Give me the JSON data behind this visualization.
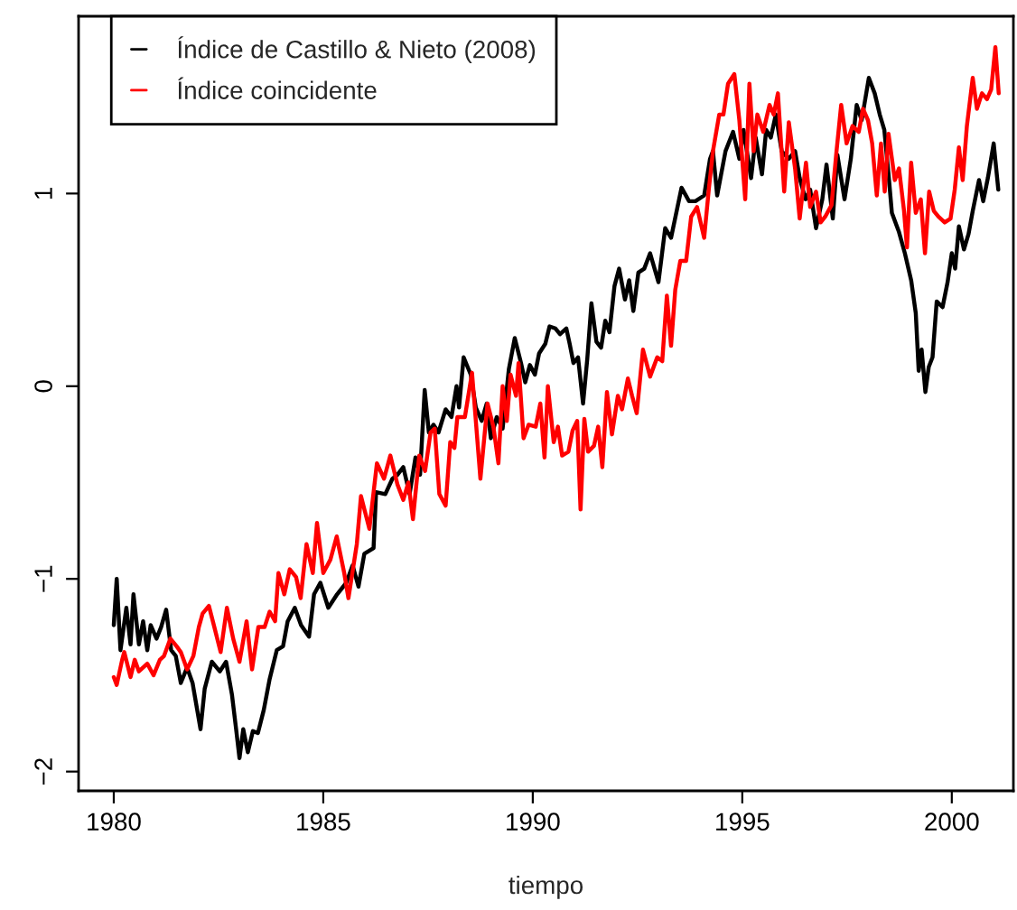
{
  "chart_data": {
    "type": "line",
    "xlabel": "tiempo",
    "xlim": [
      1979.16,
      2001.47
    ],
    "ylim": [
      -2.1,
      1.92
    ],
    "xticks": [
      1980,
      1985,
      1990,
      1995,
      2000
    ],
    "yticks": [
      -2,
      -1,
      0,
      1
    ],
    "grid": false,
    "legend": "top left",
    "marker": "none",
    "line_style": "solid",
    "series": [
      {
        "name": "Índice de Castillo & Nieto (2008)",
        "color": "#000000",
        "x": [
          1980.0,
          1980.07,
          1980.16,
          1980.3,
          1980.4,
          1980.47,
          1980.6,
          1980.7,
          1980.8,
          1980.88,
          1981.02,
          1981.13,
          1981.25,
          1981.37,
          1981.48,
          1981.6,
          1981.75,
          1981.88,
          1982.07,
          1982.17,
          1982.34,
          1982.53,
          1982.68,
          1982.82,
          1982.92,
          1983.0,
          1983.09,
          1983.2,
          1983.32,
          1983.44,
          1983.58,
          1983.72,
          1983.89,
          1984.04,
          1984.15,
          1984.32,
          1984.47,
          1984.66,
          1984.78,
          1984.93,
          1985.12,
          1985.33,
          1985.55,
          1985.7,
          1985.84,
          1985.98,
          1986.2,
          1986.26,
          1986.48,
          1986.65,
          1986.77,
          1986.91,
          1987.06,
          1987.2,
          1987.31,
          1987.42,
          1987.52,
          1987.63,
          1987.75,
          1987.92,
          1988.06,
          1988.18,
          1988.24,
          1988.35,
          1988.52,
          1988.64,
          1988.78,
          1988.9,
          1989.0,
          1989.14,
          1989.28,
          1989.43,
          1989.57,
          1989.72,
          1989.82,
          1989.93,
          1990.05,
          1990.15,
          1990.3,
          1990.4,
          1990.54,
          1990.65,
          1990.8,
          1990.88,
          1990.97,
          1991.08,
          1991.2,
          1991.3,
          1991.4,
          1991.52,
          1991.63,
          1991.73,
          1991.83,
          1991.95,
          1992.06,
          1992.2,
          1992.3,
          1992.4,
          1992.52,
          1992.66,
          1992.8,
          1993.0,
          1993.16,
          1993.3,
          1993.55,
          1993.73,
          1993.88,
          1994.09,
          1994.23,
          1994.3,
          1994.4,
          1994.6,
          1994.78,
          1994.93,
          1995.03,
          1995.21,
          1995.32,
          1995.47,
          1995.57,
          1995.68,
          1995.8,
          1995.94,
          1996.11,
          1996.26,
          1996.37,
          1996.51,
          1996.62,
          1996.76,
          1996.91,
          1997.01,
          1997.16,
          1997.27,
          1997.44,
          1997.59,
          1997.73,
          1997.85,
          1998.02,
          1998.16,
          1998.28,
          1998.39,
          1998.49,
          1998.57,
          1998.74,
          1998.88,
          1999.03,
          1999.14,
          1999.21,
          1999.28,
          1999.37,
          1999.45,
          1999.54,
          1999.64,
          1999.78,
          1999.9,
          2000.0,
          2000.08,
          2000.17,
          2000.29,
          2000.4,
          2000.5,
          2000.65,
          2000.75,
          2000.86,
          2001.0,
          2001.11
        ],
        "values": [
          -1.24,
          -1.0,
          -1.37,
          -1.15,
          -1.34,
          -1.08,
          -1.34,
          -1.22,
          -1.37,
          -1.24,
          -1.31,
          -1.25,
          -1.16,
          -1.37,
          -1.4,
          -1.54,
          -1.46,
          -1.54,
          -1.78,
          -1.57,
          -1.43,
          -1.48,
          -1.43,
          -1.6,
          -1.78,
          -1.93,
          -1.78,
          -1.9,
          -1.79,
          -1.8,
          -1.68,
          -1.52,
          -1.37,
          -1.35,
          -1.22,
          -1.15,
          -1.24,
          -1.3,
          -1.08,
          -1.02,
          -1.15,
          -1.08,
          -1.02,
          -0.93,
          -1.04,
          -0.87,
          -0.84,
          -0.55,
          -0.56,
          -0.48,
          -0.46,
          -0.42,
          -0.56,
          -0.37,
          -0.46,
          -0.02,
          -0.24,
          -0.2,
          -0.24,
          -0.12,
          -0.16,
          0.0,
          -0.11,
          0.15,
          0.06,
          -0.11,
          -0.18,
          -0.09,
          -0.27,
          -0.16,
          -0.22,
          0.09,
          0.25,
          0.12,
          0.02,
          0.11,
          0.06,
          0.17,
          0.22,
          0.31,
          0.3,
          0.27,
          0.3,
          0.22,
          0.12,
          0.15,
          -0.09,
          0.14,
          0.43,
          0.23,
          0.2,
          0.34,
          0.28,
          0.52,
          0.61,
          0.45,
          0.55,
          0.39,
          0.59,
          0.61,
          0.69,
          0.54,
          0.82,
          0.77,
          1.03,
          0.96,
          0.96,
          0.99,
          1.18,
          1.22,
          0.99,
          1.22,
          1.32,
          1.18,
          1.33,
          1.08,
          1.29,
          1.1,
          1.33,
          1.29,
          1.41,
          1.22,
          1.18,
          1.22,
          1.08,
          0.97,
          1.02,
          0.82,
          0.97,
          1.15,
          0.87,
          1.2,
          0.97,
          1.18,
          1.46,
          1.38,
          1.6,
          1.52,
          1.41,
          1.33,
          1.1,
          0.9,
          0.8,
          0.69,
          0.55,
          0.38,
          0.08,
          0.19,
          -0.03,
          0.1,
          0.15,
          0.44,
          0.41,
          0.54,
          0.69,
          0.61,
          0.83,
          0.71,
          0.79,
          0.91,
          1.07,
          0.96,
          1.08,
          1.26,
          1.02
        ]
      },
      {
        "name": "Índice coincidente",
        "color": "#ff0000",
        "x": [
          1980.0,
          1980.07,
          1980.2,
          1980.25,
          1980.4,
          1980.5,
          1980.6,
          1980.8,
          1980.95,
          1981.1,
          1981.2,
          1981.35,
          1981.5,
          1981.6,
          1981.75,
          1981.9,
          1982.03,
          1982.12,
          1982.27,
          1982.4,
          1982.55,
          1982.7,
          1982.85,
          1983.0,
          1983.17,
          1983.3,
          1983.45,
          1983.6,
          1983.72,
          1983.85,
          1983.93,
          1984.07,
          1984.2,
          1984.35,
          1984.46,
          1984.6,
          1984.75,
          1984.85,
          1985.0,
          1985.17,
          1985.32,
          1985.5,
          1985.6,
          1985.8,
          1985.9,
          1986.1,
          1986.28,
          1986.45,
          1986.6,
          1986.77,
          1986.91,
          1987.03,
          1987.14,
          1987.29,
          1987.43,
          1987.56,
          1987.66,
          1987.77,
          1987.92,
          1988.03,
          1988.13,
          1988.2,
          1988.38,
          1988.55,
          1988.75,
          1988.92,
          1989.06,
          1989.18,
          1989.28,
          1989.38,
          1989.47,
          1989.6,
          1989.66,
          1989.78,
          1989.9,
          1990.07,
          1990.18,
          1990.28,
          1990.36,
          1990.5,
          1990.6,
          1990.7,
          1990.85,
          1990.95,
          1991.06,
          1991.14,
          1991.23,
          1991.32,
          1991.46,
          1991.56,
          1991.66,
          1991.77,
          1991.89,
          1992.03,
          1992.13,
          1992.27,
          1992.37,
          1992.48,
          1992.63,
          1992.8,
          1992.97,
          1993.09,
          1993.2,
          1993.3,
          1993.4,
          1993.52,
          1993.66,
          1993.78,
          1993.92,
          1994.09,
          1994.2,
          1994.3,
          1994.45,
          1994.55,
          1994.66,
          1994.81,
          1994.93,
          1995.07,
          1995.17,
          1995.27,
          1995.36,
          1995.5,
          1995.65,
          1995.75,
          1995.85,
          1996.0,
          1996.11,
          1996.26,
          1996.37,
          1996.52,
          1996.62,
          1996.76,
          1996.87,
          1996.98,
          1997.13,
          1997.24,
          1997.36,
          1997.49,
          1997.63,
          1997.78,
          1997.88,
          1998.0,
          1998.1,
          1998.21,
          1998.31,
          1998.4,
          1998.49,
          1998.64,
          1998.74,
          1998.86,
          1998.93,
          1999.03,
          1999.14,
          1999.26,
          1999.36,
          1999.46,
          1999.57,
          1999.68,
          1999.83,
          1999.97,
          2000.07,
          2000.17,
          2000.26,
          2000.36,
          2000.5,
          2000.6,
          2000.72,
          2000.84,
          2000.94,
          2001.04,
          2001.12
        ],
        "values": [
          -1.51,
          -1.55,
          -1.42,
          -1.38,
          -1.51,
          -1.42,
          -1.48,
          -1.44,
          -1.5,
          -1.42,
          -1.4,
          -1.31,
          -1.35,
          -1.38,
          -1.47,
          -1.4,
          -1.25,
          -1.18,
          -1.14,
          -1.25,
          -1.38,
          -1.15,
          -1.31,
          -1.43,
          -1.22,
          -1.47,
          -1.25,
          -1.25,
          -1.17,
          -1.22,
          -0.97,
          -1.08,
          -0.95,
          -0.99,
          -1.1,
          -0.82,
          -0.97,
          -0.71,
          -0.97,
          -0.9,
          -0.78,
          -0.97,
          -1.1,
          -0.82,
          -0.57,
          -0.74,
          -0.4,
          -0.48,
          -0.36,
          -0.51,
          -0.59,
          -0.5,
          -0.69,
          -0.36,
          -0.44,
          -0.24,
          -0.22,
          -0.56,
          -0.62,
          -0.29,
          -0.32,
          -0.16,
          -0.16,
          0.07,
          -0.48,
          -0.09,
          -0.21,
          -0.4,
          0.0,
          -0.18,
          0.06,
          -0.05,
          0.12,
          -0.27,
          -0.2,
          -0.21,
          -0.09,
          -0.37,
          0.0,
          -0.29,
          -0.21,
          -0.36,
          -0.34,
          -0.23,
          -0.18,
          -0.64,
          -0.17,
          -0.34,
          -0.31,
          -0.21,
          -0.42,
          -0.03,
          -0.25,
          -0.05,
          -0.12,
          0.04,
          -0.05,
          -0.14,
          0.19,
          0.05,
          0.15,
          0.13,
          0.47,
          0.21,
          0.5,
          0.65,
          0.65,
          0.88,
          0.93,
          0.77,
          1.02,
          1.22,
          1.41,
          1.41,
          1.57,
          1.62,
          1.38,
          0.97,
          1.57,
          1.22,
          1.41,
          1.32,
          1.46,
          1.41,
          1.52,
          1.01,
          1.37,
          1.13,
          0.87,
          1.16,
          0.93,
          1.01,
          0.85,
          0.88,
          0.94,
          1.2,
          1.46,
          1.26,
          1.35,
          1.32,
          1.44,
          1.38,
          1.26,
          0.99,
          1.26,
          1.01,
          1.31,
          1.07,
          1.13,
          0.91,
          0.72,
          1.16,
          0.9,
          0.97,
          0.69,
          1.01,
          0.91,
          0.88,
          0.85,
          0.87,
          1.02,
          1.24,
          1.07,
          1.35,
          1.6,
          1.44,
          1.52,
          1.49,
          1.54,
          1.76,
          1.52
        ]
      }
    ]
  }
}
